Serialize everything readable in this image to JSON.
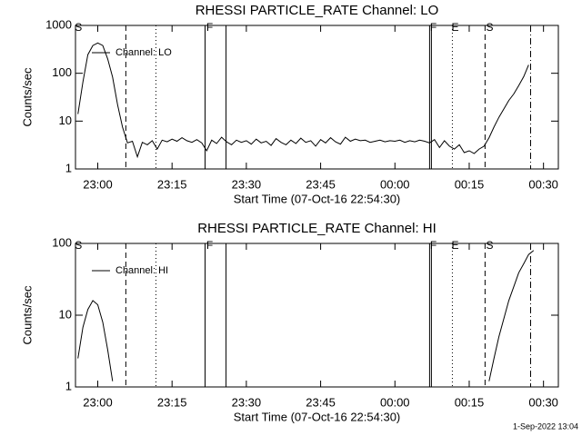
{
  "chart_data": [
    {
      "type": "line",
      "title": "RHESSI PARTICLE_RATE Channel: LO",
      "xlabel": "Start Time (07-Oct-16 22:54:30)",
      "ylabel": "Counts/sec",
      "log_y": true,
      "legend": "upper left",
      "xlim": [
        "22:55:30",
        "00:33"
      ],
      "ylim": [
        1,
        1000
      ],
      "xticks": [
        "23:00",
        "23:15",
        "23:30",
        "23:45",
        "00:00",
        "00:15",
        "00:30"
      ],
      "yticks": [
        1,
        10,
        100,
        1000
      ],
      "x": [
        "22:56",
        "22:57",
        "22:58",
        "22:59",
        "23:00",
        "23:01",
        "23:02",
        "23:03",
        "23:04",
        "23:05",
        "23:06",
        "23:07",
        "23:08",
        "23:09",
        "23:10",
        "23:11",
        "23:12",
        "23:13",
        "23:14",
        "23:15",
        "23:16",
        "23:17",
        "23:18",
        "23:19",
        "23:20",
        "23:21",
        "23:22",
        "23:23",
        "23:24",
        "23:25",
        "23:26",
        "23:27",
        "23:28",
        "23:29",
        "23:30",
        "23:31",
        "23:32",
        "23:33",
        "23:34",
        "23:35",
        "23:36",
        "23:37",
        "23:38",
        "23:39",
        "23:40",
        "23:41",
        "23:42",
        "23:43",
        "23:44",
        "23:45",
        "23:46",
        "23:47",
        "23:48",
        "23:49",
        "23:50",
        "23:51",
        "23:52",
        "23:53",
        "23:54",
        "23:55",
        "23:56",
        "23:57",
        "23:58",
        "23:59",
        "00:00",
        "00:01",
        "00:02",
        "00:03",
        "00:04",
        "00:05",
        "00:06",
        "00:07",
        "00:08",
        "00:09",
        "00:10",
        "00:11",
        "00:12",
        "00:13",
        "00:14",
        "00:15",
        "00:16",
        "00:17",
        "00:18",
        "00:19",
        "00:20",
        "00:21",
        "00:22",
        "00:23",
        "00:24",
        "00:25",
        "00:26",
        "00:27"
      ],
      "series": [
        {
          "name": "Channel: LO",
          "color": "#000000",
          "values": [
            14,
            66,
            245,
            380,
            430,
            380,
            200,
            83,
            22,
            7.5,
            3.5,
            3.8,
            1.8,
            3.6,
            3.2,
            3.9,
            2.6,
            4.0,
            3.7,
            4.2,
            3.8,
            4.5,
            3.9,
            3.6,
            4.1,
            3.5,
            2.4,
            4.0,
            3.4,
            4.6,
            3.7,
            3.2,
            4.0,
            3.6,
            3.9,
            3.3,
            4.2,
            3.5,
            3.8,
            3.1,
            4.3,
            3.6,
            3.2,
            4.0,
            3.4,
            4.4,
            3.6,
            3.9,
            3.0,
            4.1,
            3.5,
            4.5,
            3.7,
            3.3,
            4.6,
            3.8,
            4.2,
            3.9,
            4.0,
            3.6,
            3.8,
            4.0,
            3.7,
            3.9,
            3.8,
            4.0,
            3.6,
            3.9,
            3.7,
            4.0,
            3.8,
            3.5,
            4.1,
            2.8,
            3.9,
            3.0,
            2.6,
            3.2,
            2.2,
            2.4,
            2.1,
            2.6,
            3.0,
            4.5,
            7.5,
            12,
            18,
            27,
            37,
            55,
            85,
            150
          ]
        }
      ],
      "markers": [
        {
          "x": "23:05:40",
          "style": "dashed"
        },
        {
          "x": "23:11:45",
          "style": "dotted"
        },
        {
          "x": "23:21:40",
          "style": "solid"
        },
        {
          "x": "23:25:54",
          "style": "solid"
        },
        {
          "x": "00:07:00",
          "style": "solid"
        },
        {
          "x": "00:07:22",
          "style": "solid"
        },
        {
          "x": "00:11:36",
          "style": "dotted"
        },
        {
          "x": "00:18:12",
          "style": "dashed"
        },
        {
          "x": "00:27:24",
          "style": "dashdot"
        }
      ],
      "flags": [
        {
          "label": "S",
          "x": "22:56:06"
        },
        {
          "label": "F",
          "x": "23:22:35"
        },
        {
          "label": "F",
          "x": "00:07:45"
        },
        {
          "label": "E",
          "x": "00:12:10"
        },
        {
          "label": "S",
          "x": "00:19:08"
        }
      ]
    },
    {
      "type": "line",
      "title": "RHESSI PARTICLE_RATE Channel: HI",
      "xlabel": "Start Time (07-Oct-16 22:54:30)",
      "ylabel": "Counts/sec",
      "log_y": true,
      "legend": "upper left",
      "xlim": [
        "22:55:30",
        "00:33"
      ],
      "ylim": [
        1,
        100
      ],
      "xticks": [
        "23:00",
        "23:15",
        "23:30",
        "23:45",
        "00:00",
        "00:15",
        "00:30"
      ],
      "yticks": [
        1,
        10,
        100
      ],
      "x": [
        "22:56",
        "22:57",
        "22:58",
        "22:59",
        "23:00",
        "23:01",
        "23:02",
        "23:03",
        "23:04",
        "00:19",
        "00:20",
        "00:21",
        "00:22",
        "00:23",
        "00:24",
        "00:25",
        "00:26",
        "00:27",
        "00:28"
      ],
      "series": [
        {
          "name": "Channel: HI",
          "color": "#000000",
          "values": [
            2.5,
            6.8,
            12,
            16,
            14,
            8,
            3.3,
            1.2,
            null,
            1.2,
            2.5,
            5,
            9,
            16,
            25,
            39,
            52,
            70,
            80
          ]
        }
      ],
      "markers": [
        {
          "x": "23:05:40",
          "style": "dashed"
        },
        {
          "x": "23:11:45",
          "style": "dotted"
        },
        {
          "x": "23:21:40",
          "style": "solid"
        },
        {
          "x": "23:25:54",
          "style": "solid"
        },
        {
          "x": "00:07:00",
          "style": "solid"
        },
        {
          "x": "00:07:22",
          "style": "solid"
        },
        {
          "x": "00:11:36",
          "style": "dotted"
        },
        {
          "x": "00:18:12",
          "style": "dashed"
        },
        {
          "x": "00:27:24",
          "style": "dashdot"
        }
      ],
      "flags": [
        {
          "label": "S",
          "x": "22:56:06"
        },
        {
          "label": "F",
          "x": "23:22:35"
        },
        {
          "label": "F",
          "x": "00:07:45"
        },
        {
          "label": "E",
          "x": "00:12:10"
        },
        {
          "label": "S",
          "x": "00:19:08"
        }
      ]
    }
  ],
  "footer": "1-Sep-2022 13:04"
}
